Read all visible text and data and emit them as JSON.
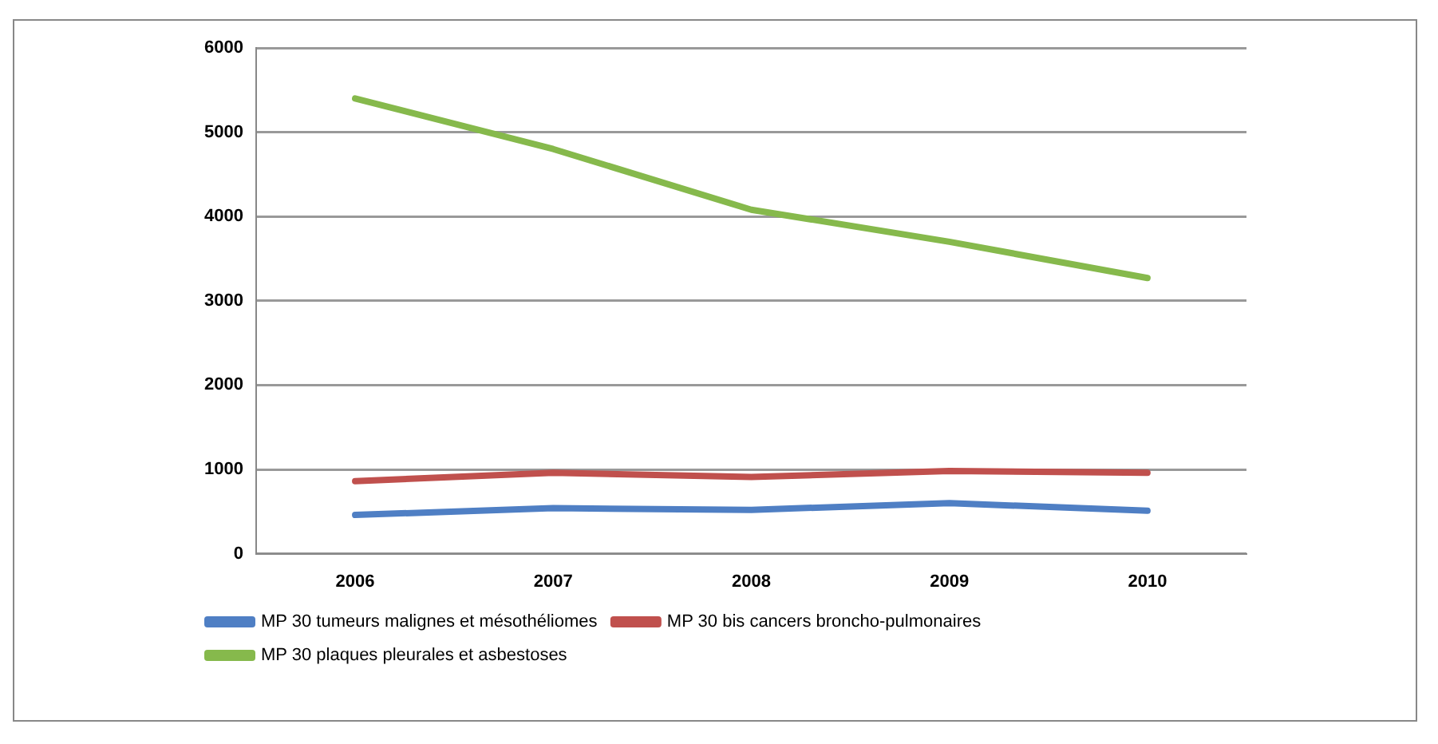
{
  "chart_data": {
    "type": "line",
    "categories": [
      "2006",
      "2007",
      "2008",
      "2009",
      "2010"
    ],
    "series": [
      {
        "name": "MP 30 tumeurs malignes et mésothéliomes",
        "color": "#4f7fc4",
        "values": [
          460,
          540,
          520,
          600,
          510
        ]
      },
      {
        "name": "MP 30 bis cancers broncho-pulmonaires",
        "color": "#c0504d",
        "values": [
          860,
          960,
          910,
          980,
          960
        ]
      },
      {
        "name": "MP 30 plaques pleurales et asbestoses",
        "color": "#86b94c",
        "values": [
          5400,
          4800,
          4080,
          3700,
          3270
        ]
      }
    ],
    "ylim": [
      0,
      6000
    ],
    "yticks": [
      0,
      1000,
      2000,
      3000,
      4000,
      5000,
      6000
    ],
    "grid": "y",
    "legend": "bottom",
    "marker": "none",
    "line_style": "solid"
  }
}
